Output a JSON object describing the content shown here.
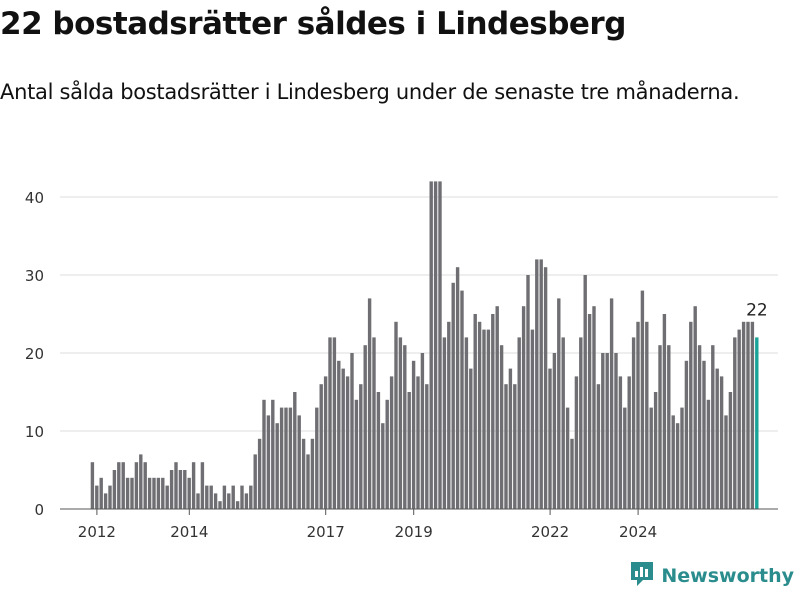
{
  "header": {
    "title": "22 bostadsrätter såldes i Lindesberg",
    "subtitle": "Antal sålda bostadsrätter i Lindesberg under de senaste tre månaderna."
  },
  "brand": {
    "name": "Newsworthy",
    "icon": "newsworthy-logo-icon",
    "color": "#2a8c8c"
  },
  "chart_data": {
    "type": "bar",
    "title": "22 bostadsrätter såldes i Lindesberg",
    "subtitle": "Antal sålda bostadsrätter i Lindesberg under de senaste tre månaderna.",
    "xlabel": "",
    "ylabel": "",
    "ylim": [
      0,
      42
    ],
    "yticks": [
      0,
      10,
      20,
      30,
      40
    ],
    "x_tick_labels": [
      {
        "label": "2012",
        "index": 1
      },
      {
        "label": "2014",
        "index": 22
      },
      {
        "label": "2017",
        "index": 53
      },
      {
        "label": "2019",
        "index": 73
      },
      {
        "label": "2022",
        "index": 104
      },
      {
        "label": "2024",
        "index": 124
      }
    ],
    "bar_color": "#6f6e73",
    "highlight_color": "#1aa399",
    "highlight_label": "22",
    "grid": true,
    "values": [
      6,
      3,
      4,
      2,
      3,
      5,
      6,
      6,
      4,
      4,
      6,
      7,
      6,
      4,
      4,
      4,
      4,
      3,
      5,
      6,
      5,
      5,
      4,
      6,
      2,
      6,
      3,
      3,
      2,
      1,
      3,
      2,
      3,
      1,
      3,
      2,
      3,
      7,
      9,
      14,
      12,
      14,
      11,
      13,
      13,
      13,
      15,
      12,
      9,
      7,
      9,
      13,
      16,
      17,
      22,
      22,
      19,
      18,
      17,
      20,
      14,
      16,
      21,
      27,
      22,
      15,
      11,
      14,
      17,
      24,
      22,
      21,
      15,
      19,
      17,
      20,
      16,
      42,
      42,
      42,
      22,
      24,
      29,
      31,
      28,
      22,
      18,
      25,
      24,
      23,
      23,
      25,
      26,
      21,
      16,
      18,
      16,
      22,
      26,
      30,
      23,
      32,
      32,
      31,
      18,
      20,
      27,
      22,
      13,
      9,
      17,
      22,
      30,
      25,
      26,
      16,
      20,
      20,
      27,
      20,
      17,
      13,
      17,
      22,
      24,
      28,
      24,
      13,
      15,
      21,
      25,
      21,
      12,
      11,
      13,
      19,
      24,
      26,
      21,
      19,
      14,
      21,
      18,
      17,
      12,
      15,
      22,
      23,
      24,
      24,
      24,
      22
    ]
  }
}
